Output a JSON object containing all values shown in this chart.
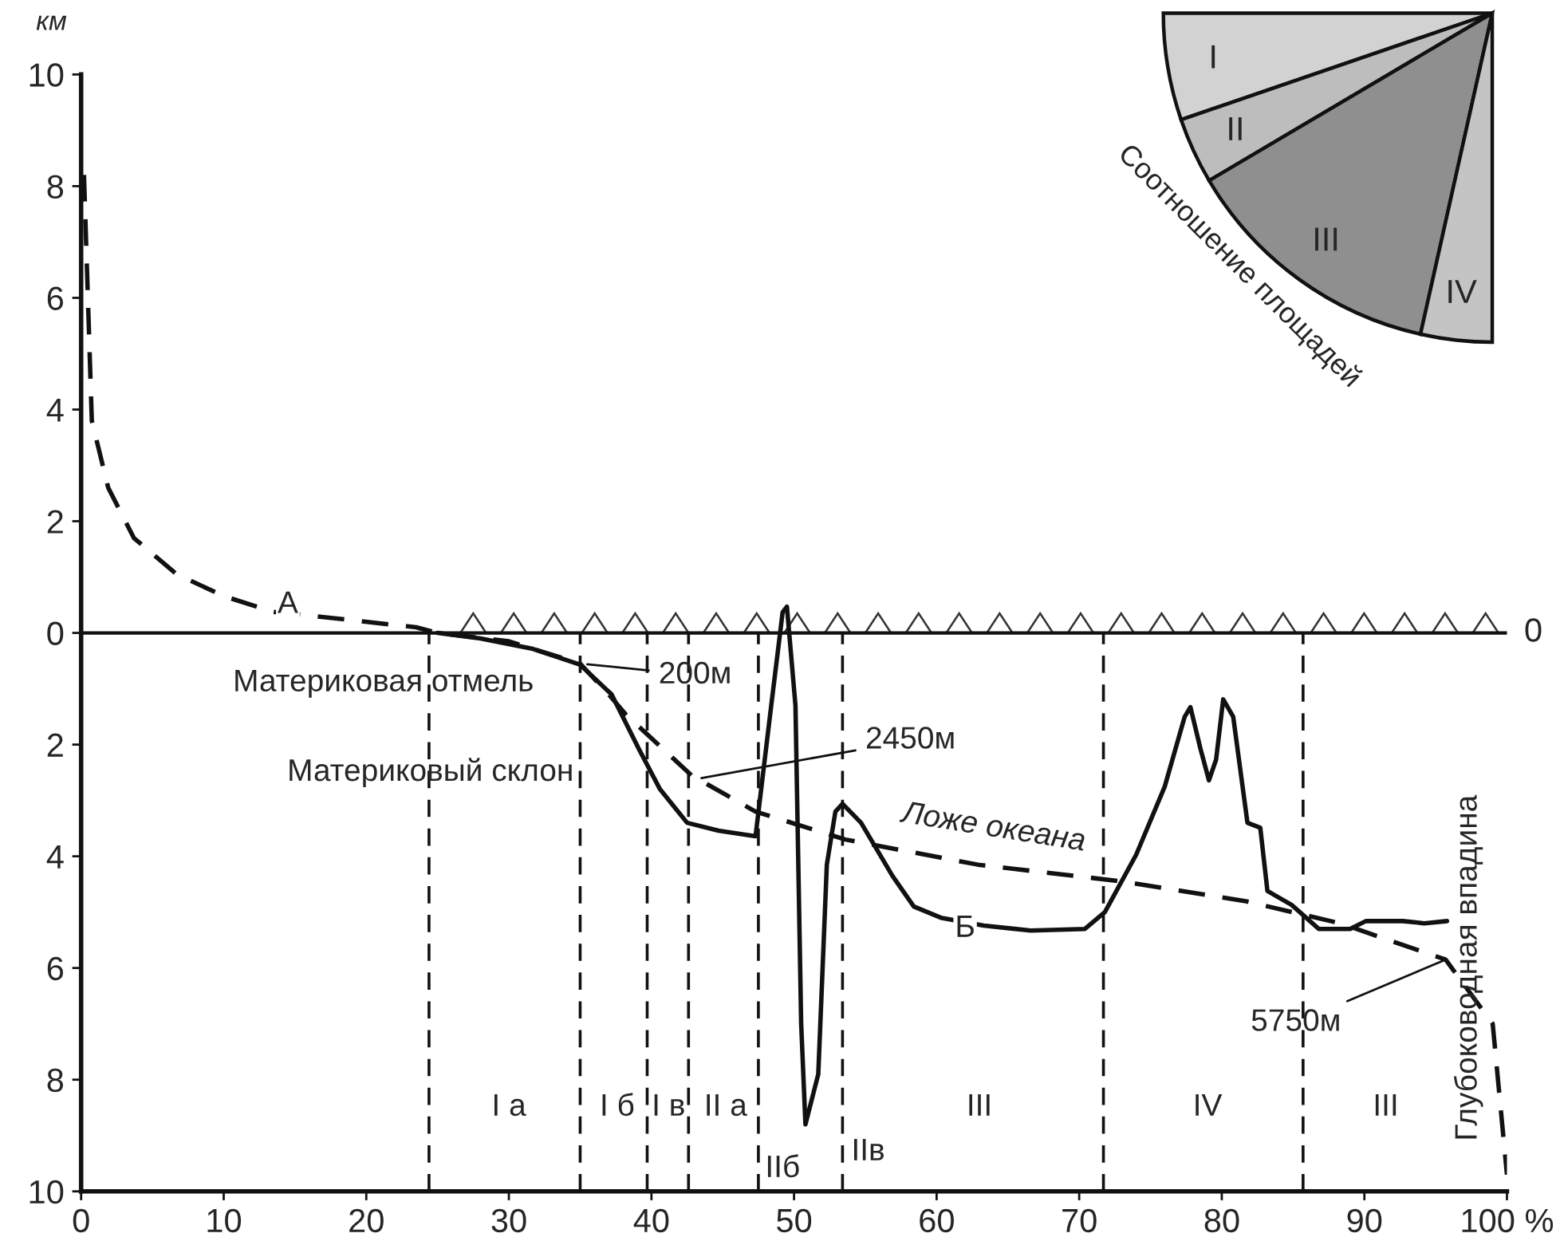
{
  "chart_data": [
    {
      "type": "line",
      "ylabel": "км",
      "xlim": [
        0,
        100
      ],
      "xticks": [
        0,
        10,
        20,
        30,
        40,
        50,
        60,
        70,
        80,
        90,
        {
          "value": 100,
          "label": "100 %"
        }
      ],
      "ylim": [
        -10,
        10
      ],
      "yticks": [
        {
          "value": -10,
          "label": "10"
        },
        {
          "value": -8,
          "label": "8"
        },
        {
          "value": -6,
          "label": "6"
        },
        {
          "value": -4,
          "label": "4"
        },
        {
          "value": -2,
          "label": "2"
        },
        0,
        2,
        4,
        6,
        8,
        10
      ],
      "grid": false,
      "legend": false,
      "series": [
        {
          "color": "#111111",
          "line_style": "dashed",
          "x": [
            0.2,
            0.4,
            0.75,
            1.9,
            3.7,
            6.7,
            10,
            13.4,
            18.6,
            23.5,
            25,
            30,
            35,
            37,
            38.2,
            42.8,
            47.3,
            53.6,
            62.9,
            73,
            81.6,
            88.3,
            95.7,
            99,
            100
          ],
          "values": [
            8.2,
            6.6,
            3.8,
            2.6,
            1.7,
            1.05,
            0.66,
            0.38,
            0.24,
            0.1,
            0,
            -0.15,
            -0.55,
            -1.1,
            -1.46,
            -2.55,
            -3.2,
            -3.7,
            -4.15,
            -4.45,
            -4.8,
            -5.2,
            -5.85,
            -7.0,
            -9.7
          ]
        },
        {
          "color": "#111111",
          "line_style": "solid",
          "x": [
            25,
            28,
            31.6,
            35,
            37.2,
            39.1,
            40.6,
            42.5,
            44.7,
            47.3,
            48.4,
            49.2,
            49.5,
            50.1,
            50.5,
            50.8,
            51.7,
            52.3,
            52.9,
            53.4,
            54.7,
            56.9,
            58.4,
            60.3,
            63.3,
            66.6,
            70.4,
            71.8,
            74,
            76,
            77.4,
            77.8,
            78.5,
            79.1,
            79.6,
            80.1,
            80.8,
            81.8,
            82.7,
            83.2,
            84.9,
            86.8,
            89,
            90.1,
            92.7,
            94.2,
            95.8
          ],
          "values": [
            0,
            -0.1,
            -0.28,
            -0.57,
            -1.1,
            -2.07,
            -2.8,
            -3.4,
            -3.54,
            -3.64,
            -1.3,
            0.37,
            0.47,
            -1.3,
            -7.0,
            -8.8,
            -7.9,
            -4.15,
            -3.2,
            -3.06,
            -3.4,
            -4.35,
            -4.9,
            -5.1,
            -5.24,
            -5.33,
            -5.3,
            -5.0,
            -3.97,
            -2.75,
            -1.5,
            -1.33,
            -2.07,
            -2.64,
            -2.27,
            -1.19,
            -1.5,
            -3.4,
            -3.49,
            -4.62,
            -4.87,
            -5.3,
            -5.3,
            -5.16,
            -5.16,
            -5.2,
            -5.16
          ]
        }
      ],
      "ref_lines": [
        {
          "axis": "y",
          "value": 0,
          "label": "0",
          "line_style": "solid"
        },
        {
          "axis": "x",
          "value": 24.4,
          "line_style": "dashed"
        },
        {
          "axis": "x",
          "value": 35,
          "line_style": "dashed"
        },
        {
          "axis": "x",
          "value": 39.7,
          "line_style": "dashed"
        },
        {
          "axis": "x",
          "value": 42.6,
          "line_style": "dashed"
        },
        {
          "axis": "x",
          "value": 47.5,
          "line_style": "dashed"
        },
        {
          "axis": "x",
          "value": 53.4,
          "line_style": "dashed"
        },
        {
          "axis": "x",
          "value": 71.7,
          "line_style": "dashed"
        },
        {
          "axis": "x",
          "value": 85.7,
          "line_style": "dashed"
        }
      ],
      "annotations": [
        {
          "text": "А",
          "x": 14.5,
          "y": 0.5
        },
        {
          "text": "Б",
          "x": 62,
          "y": -5.3
        },
        {
          "text": "2450м",
          "x": 43.5,
          "y": -2.6
        },
        {
          "text": "5750м",
          "x": 95.7,
          "y": -5.85
        },
        "200м",
        "Материковая отмель",
        "Материковый склон",
        "Ложе океана",
        "Глубоководная впадина",
        "I а",
        "I б",
        "I в",
        "II а",
        "IIб",
        "IIв",
        "III",
        "IV",
        "III"
      ]
    },
    {
      "type": "pie",
      "title": "Соотношение площадей",
      "categories": [
        "I",
        "II",
        "III",
        "IV"
      ],
      "values": [
        21,
        13,
        52,
        14
      ],
      "colors": [
        "#d2d2d2",
        "#bdbdbd",
        "#8f8f8f",
        "#c4c4c4"
      ]
    }
  ]
}
